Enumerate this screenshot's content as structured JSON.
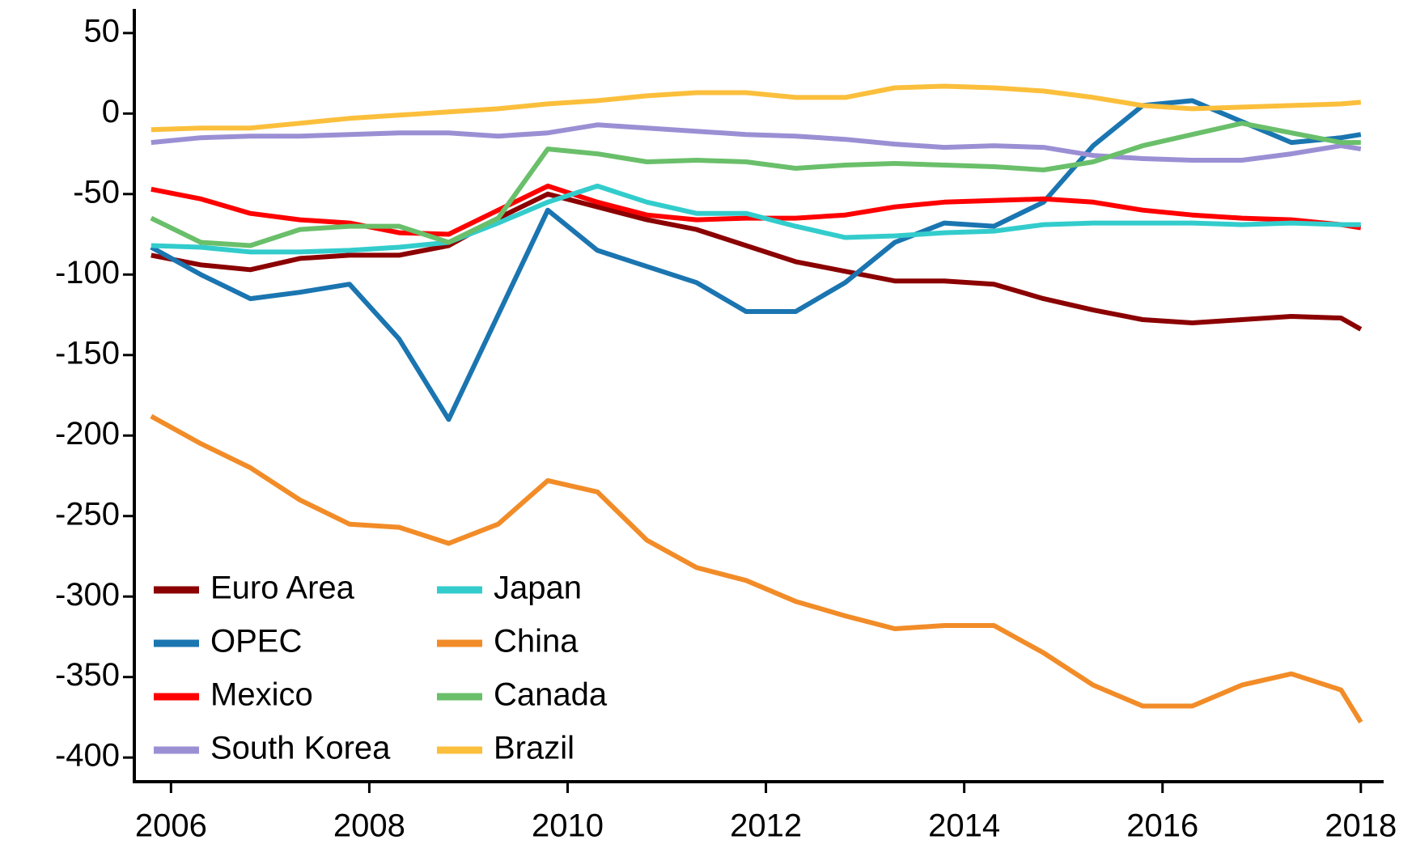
{
  "chart_data": {
    "type": "line",
    "x": [
      2005.8,
      2006.3,
      2006.8,
      2007.3,
      2007.8,
      2008.3,
      2008.8,
      2009.3,
      2009.8,
      2010.3,
      2010.8,
      2011.3,
      2011.8,
      2012.3,
      2012.8,
      2013.3,
      2013.8,
      2014.3,
      2014.8,
      2015.3,
      2015.8,
      2016.3,
      2016.8,
      2017.3,
      2017.8,
      2018.0
    ],
    "series": [
      {
        "name": "Euro Area",
        "color": "#8b0000",
        "values": [
          -88,
          -94,
          -97,
          -90,
          -88,
          -88,
          -82,
          -65,
          -50,
          -58,
          -66,
          -72,
          -82,
          -92,
          -98,
          -104,
          -104,
          -106,
          -115,
          -122,
          -128,
          -130,
          -128,
          -126,
          -127,
          -134
        ]
      },
      {
        "name": "OPEC",
        "color": "#1a75b0",
        "values": [
          -83,
          -100,
          -115,
          -111,
          -106,
          -140,
          -190,
          -125,
          -60,
          -85,
          -95,
          -105,
          -123,
          -123,
          -105,
          -80,
          -68,
          -70,
          -55,
          -20,
          5,
          8,
          -5,
          -18,
          -15,
          -13
        ]
      },
      {
        "name": "Mexico",
        "color": "#ff0000",
        "values": [
          -47,
          -53,
          -62,
          -66,
          -68,
          -74,
          -75,
          -60,
          -45,
          -55,
          -63,
          -66,
          -65,
          -65,
          -63,
          -58,
          -55,
          -54,
          -53,
          -55,
          -60,
          -63,
          -65,
          -66,
          -69,
          -71
        ]
      },
      {
        "name": "South Korea",
        "color": "#9b8fd4",
        "values": [
          -18,
          -15,
          -14,
          -14,
          -13,
          -12,
          -12,
          -14,
          -12,
          -7,
          -9,
          -11,
          -13,
          -14,
          -16,
          -19,
          -21,
          -20,
          -21,
          -26,
          -28,
          -29,
          -29,
          -25,
          -20,
          -22
        ]
      },
      {
        "name": "Japan",
        "color": "#33cccc",
        "values": [
          -82,
          -83,
          -86,
          -86,
          -85,
          -83,
          -80,
          -68,
          -55,
          -45,
          -55,
          -62,
          -62,
          -70,
          -77,
          -76,
          -74,
          -73,
          -69,
          -68,
          -68,
          -68,
          -69,
          -68,
          -69,
          -69
        ]
      },
      {
        "name": "China",
        "color": "#f28c28",
        "values": [
          -188,
          -205,
          -220,
          -240,
          -255,
          -257,
          -267,
          -255,
          -228,
          -235,
          -265,
          -282,
          -290,
          -303,
          -312,
          -320,
          -318,
          -318,
          -335,
          -355,
          -368,
          -368,
          -355,
          -348,
          -358,
          -378
        ]
      },
      {
        "name": "Canada",
        "color": "#6abf6a",
        "values": [
          -65,
          -80,
          -82,
          -72,
          -70,
          -70,
          -80,
          -65,
          -22,
          -25,
          -30,
          -29,
          -30,
          -34,
          -32,
          -31,
          -32,
          -33,
          -35,
          -30,
          -20,
          -13,
          -6,
          -12,
          -18,
          -18
        ]
      },
      {
        "name": "Brazil",
        "color": "#fbbf3c",
        "values": [
          -10,
          -9,
          -9,
          -6,
          -3,
          -1,
          1,
          3,
          6,
          8,
          11,
          13,
          13,
          10,
          10,
          16,
          17,
          16,
          14,
          10,
          5,
          3,
          4,
          5,
          6,
          7
        ]
      }
    ],
    "xlim": [
      2005.63,
      2018.23
    ],
    "xticks": [
      2006,
      2008,
      2010,
      2012,
      2014,
      2016,
      2018
    ],
    "ylim": [
      -415,
      65
    ],
    "yticks": [
      50,
      0,
      -50,
      -100,
      -150,
      -200,
      -250,
      -300,
      -350,
      -400
    ],
    "legend": "lower left",
    "grid": false
  }
}
